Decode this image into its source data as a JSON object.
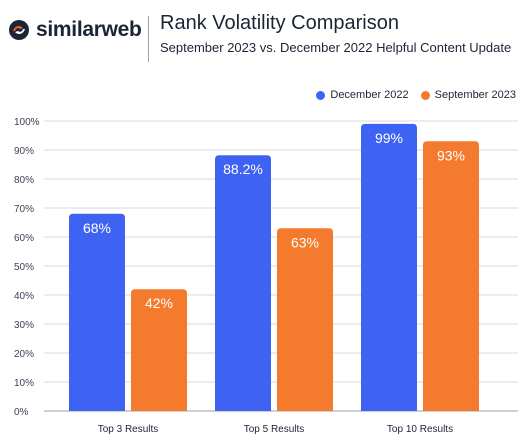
{
  "header": {
    "brand": "similarweb",
    "title": "Rank Volatility Comparison",
    "subtitle": "September 2023 vs. December 2022 Helpful Content Update"
  },
  "colors": {
    "dec": "#3e63f2",
    "sep": "#f47b2e",
    "grid": "#d6d9df",
    "brand_dark": "#1b2536",
    "brand_orange": "#f25c2a"
  },
  "chart_data": {
    "type": "bar",
    "categories": [
      "Top 3 Results",
      "Top 5 Results",
      "Top 10 Results"
    ],
    "series": [
      {
        "name": "December 2022",
        "values": [
          68,
          88.2,
          99
        ],
        "labels": [
          "68%",
          "88.2%",
          "99%"
        ]
      },
      {
        "name": "September 2023",
        "values": [
          42,
          63,
          93
        ],
        "labels": [
          "42%",
          "63%",
          "93%"
        ]
      }
    ],
    "yticks": [
      "0%",
      "10%",
      "20%",
      "30%",
      "40%",
      "50%",
      "60%",
      "70%",
      "80%",
      "90%",
      "100%"
    ],
    "ylim": [
      0,
      100
    ],
    "grid": true,
    "legend_position": "top-right"
  }
}
